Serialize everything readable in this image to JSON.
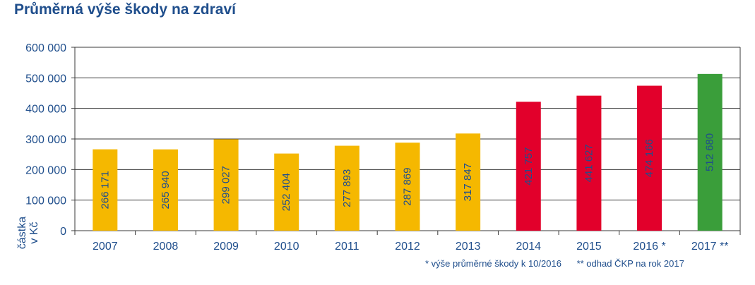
{
  "title": "Průměrná výše škody na zdraví",
  "chart_data": {
    "type": "bar",
    "title": "Průměrná výše škody na zdraví",
    "xlabel": "",
    "ylabel": "částka v Kč",
    "ylabel_lines": [
      "částka",
      "v Kč"
    ],
    "ylim": [
      0,
      600000
    ],
    "yticks": [
      0,
      100000,
      200000,
      300000,
      400000,
      500000,
      600000
    ],
    "ytick_labels": [
      "0",
      "100 000",
      "200 000",
      "300 000",
      "400 000",
      "500 000",
      "600 000"
    ],
    "grid": true,
    "categories": [
      "2007",
      "2008",
      "2009",
      "2010",
      "2011",
      "2012",
      "2013",
      "2014",
      "2015",
      "2016 *",
      "2017 **"
    ],
    "values": [
      266171,
      265940,
      299027,
      252404,
      277893,
      287869,
      317847,
      421757,
      441627,
      474166,
      512680
    ],
    "value_labels": [
      "266 171",
      "265 940",
      "299 027",
      "252 404",
      "277 893",
      "287 869",
      "317 847",
      "421 757",
      "441 627",
      "474 166",
      "512 680"
    ],
    "bar_colors": [
      "#f5b800",
      "#f5b800",
      "#f5b800",
      "#f5b800",
      "#f5b800",
      "#f5b800",
      "#f5b800",
      "#e2002b",
      "#e2002b",
      "#e2002b",
      "#3a9e3a"
    ],
    "label_color": "#1f4e8c"
  },
  "footnotes": {
    "note1": "* výše průměrné škody k 10/2016",
    "note2": "** odhad ČKP na rok 2017"
  }
}
